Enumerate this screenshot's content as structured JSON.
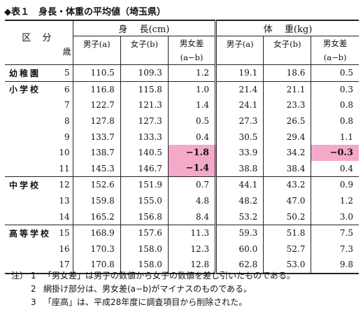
{
  "title": "◆表１　身長・体重の平均値（埼玉県）",
  "header": {
    "kubun": "区 分",
    "age": "歳",
    "height_group": "身　 長(cm)",
    "weight_group": "体 　重(kg)",
    "male": "男子(a)",
    "female": "女子(b)",
    "diff_line1": "男女差",
    "diff_line2": "(a−b)"
  },
  "rows": [
    {
      "school": "幼稚園",
      "age": "5",
      "h_m": "110.5",
      "h_f": "109.3",
      "h_d": "1.2",
      "w_m": "19.1",
      "w_f": "18.6",
      "w_d": "0.5",
      "h_neg": false,
      "w_neg": false,
      "group_first": true
    },
    {
      "school": "小学校",
      "age": "6",
      "h_m": "116.8",
      "h_f": "115.8",
      "h_d": "1.0",
      "w_m": "21.4",
      "w_f": "21.1",
      "w_d": "0.3",
      "h_neg": false,
      "w_neg": false,
      "group_first": true
    },
    {
      "school": "",
      "age": "7",
      "h_m": "122.7",
      "h_f": "121.3",
      "h_d": "1.4",
      "w_m": "24.1",
      "w_f": "23.3",
      "w_d": "0.8",
      "h_neg": false,
      "w_neg": false,
      "group_first": false
    },
    {
      "school": "",
      "age": "8",
      "h_m": "127.8",
      "h_f": "127.3",
      "h_d": "0.5",
      "w_m": "27.3",
      "w_f": "26.5",
      "w_d": "0.8",
      "h_neg": false,
      "w_neg": false,
      "group_first": false
    },
    {
      "school": "",
      "age": "9",
      "h_m": "133.7",
      "h_f": "133.3",
      "h_d": "0.4",
      "w_m": "30.5",
      "w_f": "29.4",
      "w_d": "1.1",
      "h_neg": false,
      "w_neg": false,
      "group_first": false
    },
    {
      "school": "",
      "age": "10",
      "h_m": "138.7",
      "h_f": "140.5",
      "h_d": "−1.8",
      "w_m": "33.9",
      "w_f": "34.2",
      "w_d": "−0.3",
      "h_neg": true,
      "w_neg": true,
      "group_first": false
    },
    {
      "school": "",
      "age": "11",
      "h_m": "145.3",
      "h_f": "146.7",
      "h_d": "−1.4",
      "w_m": "38.8",
      "w_f": "38.4",
      "w_d": "0.4",
      "h_neg": true,
      "w_neg": false,
      "group_first": false
    },
    {
      "school": "中学校",
      "age": "12",
      "h_m": "152.6",
      "h_f": "151.9",
      "h_d": "0.7",
      "w_m": "44.1",
      "w_f": "43.2",
      "w_d": "0.9",
      "h_neg": false,
      "w_neg": false,
      "group_first": true
    },
    {
      "school": "",
      "age": "13",
      "h_m": "159.8",
      "h_f": "155.0",
      "h_d": "4.8",
      "w_m": "48.2",
      "w_f": "47.0",
      "w_d": "1.2",
      "h_neg": false,
      "w_neg": false,
      "group_first": false
    },
    {
      "school": "",
      "age": "14",
      "h_m": "165.2",
      "h_f": "156.8",
      "h_d": "8.4",
      "w_m": "53.2",
      "w_f": "50.2",
      "w_d": "3.0",
      "h_neg": false,
      "w_neg": false,
      "group_first": false
    },
    {
      "school": "高等学校",
      "age": "15",
      "h_m": "168.9",
      "h_f": "157.6",
      "h_d": "11.3",
      "w_m": "59.3",
      "w_f": "51.8",
      "w_d": "7.5",
      "h_neg": false,
      "w_neg": false,
      "group_first": true
    },
    {
      "school": "",
      "age": "16",
      "h_m": "170.3",
      "h_f": "158.0",
      "h_d": "12.3",
      "w_m": "60.0",
      "w_f": "52.7",
      "w_d": "7.3",
      "h_neg": false,
      "w_neg": false,
      "group_first": false
    },
    {
      "school": "",
      "age": "17",
      "h_m": "170.8",
      "h_f": "158.0",
      "h_d": "12.8",
      "w_m": "62.8",
      "w_f": "53.0",
      "w_d": "9.8",
      "h_neg": false,
      "w_neg": false,
      "group_first": false
    }
  ],
  "notes": [
    {
      "prefix": "注）",
      "num": "1",
      "text": "「男女差」は男子の数値から女子の数値を差し引いたものである。"
    },
    {
      "prefix": "",
      "num": "2",
      "text": "網掛け部分は、男女差(a−b)がマイナスのものである。"
    },
    {
      "prefix": "",
      "num": "3",
      "text": "「座高」は、平成28年度に調査項目から削除された。"
    }
  ],
  "colors": {
    "negative_highlight": "#f5a9c8"
  }
}
